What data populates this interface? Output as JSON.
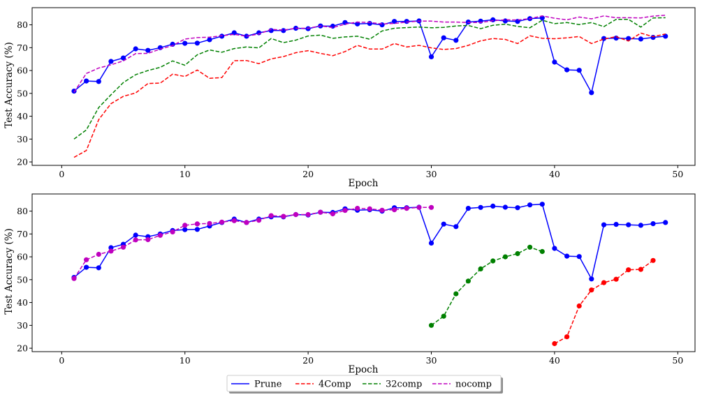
{
  "chart_data": [
    {
      "type": "line",
      "xlabel": "Epoch",
      "ylabel": "Test Accuracy (%)",
      "xlim": [
        -2.4,
        51.4
      ],
      "ylim": [
        18.5,
        87.5
      ],
      "xticks": [
        0,
        10,
        20,
        30,
        40,
        50
      ],
      "yticks": [
        20,
        30,
        40,
        50,
        60,
        70,
        80
      ],
      "grid": false,
      "series": [
        {
          "name": "Prune",
          "color": "#0000ff",
          "dash": "solid",
          "marker": true,
          "x": [
            1,
            2,
            3,
            4,
            5,
            6,
            7,
            8,
            9,
            10,
            11,
            12,
            13,
            14,
            15,
            16,
            17,
            18,
            19,
            20,
            21,
            22,
            23,
            24,
            25,
            26,
            27,
            28,
            29,
            30,
            31,
            32,
            33,
            34,
            35,
            36,
            37,
            38,
            39,
            40,
            41,
            42,
            43,
            44,
            45,
            46,
            47,
            48,
            49
          ],
          "y": [
            51,
            55.4,
            55.2,
            64,
            65.5,
            69.5,
            68.8,
            70,
            71.5,
            71.9,
            72,
            73.5,
            75,
            76.5,
            75,
            76.5,
            77.5,
            77.5,
            78.5,
            78.3,
            79.5,
            79.4,
            81,
            80.4,
            80.6,
            80,
            81.5,
            81.5,
            81.7,
            66,
            74.3,
            73.2,
            81.2,
            81.6,
            82.2,
            81.7,
            81.5,
            82.7,
            83,
            63.7,
            60.3,
            60.1,
            50.3,
            74,
            74.2,
            74,
            73.8,
            74.5,
            75
          ]
        },
        {
          "name": "4Comp",
          "color": "#ff0000",
          "dash": "dashed",
          "marker": false,
          "x": [
            1,
            2,
            3,
            4,
            5,
            6,
            7,
            8,
            9,
            10,
            11,
            12,
            13,
            14,
            15,
            16,
            17,
            18,
            19,
            20,
            21,
            22,
            23,
            24,
            25,
            26,
            27,
            28,
            29,
            30,
            31,
            32,
            33,
            34,
            35,
            36,
            37,
            38,
            39,
            40,
            41,
            42,
            43,
            44,
            45,
            46,
            47,
            48,
            49
          ],
          "y": [
            22,
            25,
            38.5,
            45.5,
            48.7,
            50.2,
            54.3,
            54.5,
            58.4,
            57.4,
            60.2,
            56.6,
            56.9,
            64.3,
            64.4,
            63,
            65.1,
            66.1,
            67.8,
            68.7,
            67.5,
            66.5,
            68.3,
            71,
            69.4,
            69.4,
            71.8,
            70.3,
            71,
            69.9,
            69.2,
            69.6,
            71,
            73,
            74,
            73.6,
            71.8,
            75.2,
            74.1,
            73.9,
            74.3,
            74.9,
            71.8,
            73.8,
            74.8,
            72.9,
            76.4,
            74.8,
            76
          ]
        },
        {
          "name": "32comp",
          "color": "#008000",
          "dash": "dashed",
          "marker": false,
          "x": [
            1,
            2,
            3,
            4,
            5,
            6,
            7,
            8,
            9,
            10,
            11,
            12,
            13,
            14,
            15,
            16,
            17,
            18,
            19,
            20,
            21,
            22,
            23,
            24,
            25,
            26,
            27,
            28,
            29,
            30,
            31,
            32,
            33,
            34,
            35,
            36,
            37,
            38,
            39,
            40,
            41,
            42,
            43,
            44,
            45,
            46,
            47,
            48,
            49
          ],
          "y": [
            30,
            34,
            43.8,
            49.4,
            54.7,
            58.2,
            60,
            61.4,
            64.2,
            62.3,
            66.9,
            69,
            68,
            69.6,
            70.3,
            69.9,
            74,
            72.2,
            73.3,
            75.1,
            75.5,
            74.1,
            74.7,
            75,
            73.7,
            77.3,
            78.5,
            78.8,
            79,
            78.7,
            78.9,
            79.5,
            79.7,
            78.3,
            79.8,
            80.3,
            79.3,
            78.7,
            82,
            80.5,
            81,
            80.1,
            81,
            79.2,
            82.4,
            82.4,
            79,
            83,
            83.1
          ]
        },
        {
          "name": "nocomp",
          "color": "#bf00bf",
          "dash": "dashed",
          "marker": false,
          "x": [
            1,
            2,
            3,
            4,
            5,
            6,
            7,
            8,
            9,
            10,
            11,
            12,
            13,
            14,
            15,
            16,
            17,
            18,
            19,
            20,
            21,
            22,
            23,
            24,
            25,
            26,
            27,
            28,
            29,
            30,
            31,
            32,
            33,
            34,
            35,
            36,
            37,
            38,
            39,
            40,
            41,
            42,
            43,
            44,
            45,
            46,
            47,
            48,
            49
          ],
          "y": [
            50.5,
            58.7,
            61.1,
            62.5,
            64.2,
            67.4,
            67.5,
            69.4,
            70.9,
            73.8,
            74.4,
            74.6,
            75.2,
            75.8,
            75,
            76,
            78,
            77.7,
            78.5,
            78.5,
            79.5,
            78.8,
            80.3,
            81.2,
            81,
            80.4,
            80.6,
            81.2,
            81.6,
            81.6,
            81.2,
            81.2,
            81,
            81,
            81.8,
            82.2,
            82.1,
            82.7,
            83.9,
            82.9,
            82.2,
            83.4,
            82.6,
            83.9,
            83.1,
            83.1,
            83,
            83.8,
            84.2
          ]
        }
      ]
    },
    {
      "type": "line",
      "xlabel": "Epoch",
      "ylabel": "Test Accuracy (%)",
      "xlim": [
        -2.4,
        51.4
      ],
      "ylim": [
        18.5,
        87.5
      ],
      "xticks": [
        0,
        10,
        20,
        30,
        40,
        50
      ],
      "yticks": [
        20,
        30,
        40,
        50,
        60,
        70,
        80
      ],
      "grid": false,
      "legend": {
        "placement": "bottom-center",
        "columns": 4,
        "entries": [
          "Prune",
          "4Comp",
          "32comp",
          "nocomp"
        ]
      },
      "series": [
        {
          "name": "Prune",
          "color": "#0000ff",
          "dash": "solid",
          "marker": true,
          "x": [
            1,
            2,
            3,
            4,
            5,
            6,
            7,
            8,
            9,
            10,
            11,
            12,
            13,
            14,
            15,
            16,
            17,
            18,
            19,
            20,
            21,
            22,
            23,
            24,
            25,
            26,
            27,
            28,
            29,
            30,
            31,
            32,
            33,
            34,
            35,
            36,
            37,
            38,
            39,
            40,
            41,
            42,
            43,
            44,
            45,
            46,
            47,
            48,
            49
          ],
          "y": [
            51,
            55.4,
            55.2,
            64,
            65.5,
            69.5,
            68.8,
            70,
            71.5,
            71.9,
            72,
            73.5,
            75,
            76.5,
            75,
            76.5,
            77.5,
            77.5,
            78.5,
            78.3,
            79.5,
            79.4,
            81,
            80.4,
            80.6,
            80,
            81.5,
            81.5,
            81.7,
            66,
            74.3,
            73.2,
            81.2,
            81.6,
            82.2,
            81.7,
            81.5,
            82.7,
            83,
            63.7,
            60.3,
            60.1,
            50.3,
            74,
            74.2,
            74,
            73.8,
            74.5,
            75
          ]
        },
        {
          "name": "4Comp",
          "color": "#ff0000",
          "dash": "dashed",
          "marker": true,
          "x": [
            40,
            41,
            42,
            43,
            44,
            45,
            46,
            47,
            48
          ],
          "y": [
            22,
            25,
            38.5,
            45.5,
            48.7,
            50.2,
            54.3,
            54.5,
            58.4
          ]
        },
        {
          "name": "32comp",
          "color": "#008000",
          "dash": "dashed",
          "marker": true,
          "x": [
            30,
            31,
            32,
            33,
            34,
            35,
            36,
            37,
            38,
            39
          ],
          "y": [
            30,
            34,
            43.8,
            49.4,
            54.7,
            58.2,
            60,
            61.4,
            64.2,
            62.3
          ]
        },
        {
          "name": "nocomp",
          "color": "#bf00bf",
          "dash": "dashed",
          "marker": true,
          "x": [
            1,
            2,
            3,
            4,
            5,
            6,
            7,
            8,
            9,
            10,
            11,
            12,
            13,
            14,
            15,
            16,
            17,
            18,
            19,
            20,
            21,
            22,
            23,
            24,
            25,
            26,
            27,
            28,
            29,
            30
          ],
          "y": [
            50.5,
            58.7,
            61.1,
            62.5,
            64.2,
            67.4,
            67.5,
            69.4,
            70.9,
            73.8,
            74.4,
            74.6,
            75.2,
            75.8,
            75,
            76,
            78,
            77.7,
            78.5,
            78.5,
            79.5,
            78.8,
            80.3,
            81.2,
            81,
            80.4,
            80.6,
            81.2,
            81.6,
            81.6
          ]
        }
      ]
    }
  ]
}
